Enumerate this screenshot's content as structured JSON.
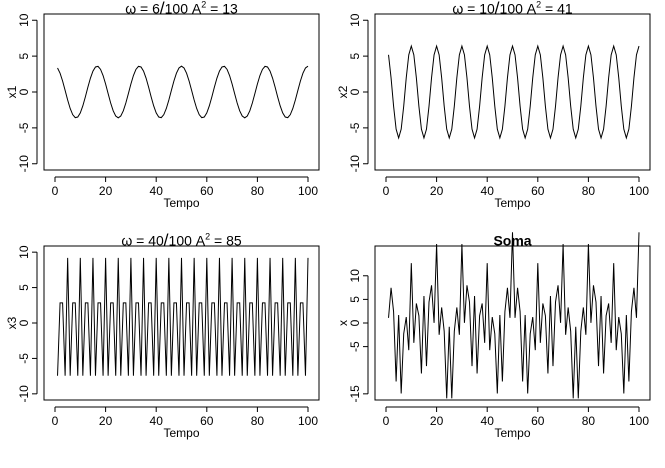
{
  "chart_data": [
    {
      "type": "line",
      "title": "ω = 6/100  A² = 13",
      "xlabel": "Tempo",
      "ylabel": "x1",
      "xlim": [
        0,
        100
      ],
      "ylim": [
        -10,
        10
      ],
      "xticks": [
        0,
        20,
        40,
        60,
        80,
        100
      ],
      "yticks": [
        -10,
        -5,
        0,
        5,
        10
      ],
      "series": [
        {
          "amplitude": 3.6,
          "frequency": 0.06,
          "phase_deg": 0,
          "x_start": 1,
          "x_end": 100
        }
      ]
    },
    {
      "type": "line",
      "title": "ω = 10/100  A² = 41",
      "xlabel": "Tempo",
      "ylabel": "x2",
      "xlim": [
        0,
        100
      ],
      "ylim": [
        -10,
        10
      ],
      "xticks": [
        0,
        20,
        40,
        60,
        80,
        100
      ],
      "yticks": [
        -10,
        -5,
        0,
        5,
        10
      ],
      "series": [
        {
          "amplitude": 6.4,
          "frequency": 0.1,
          "phase_deg": 0,
          "x_start": 1,
          "x_end": 100
        }
      ]
    },
    {
      "type": "line",
      "title": "ω = 40/100  A² = 85",
      "xlabel": "Tempo",
      "ylabel": "x3",
      "xlim": [
        0,
        100
      ],
      "ylim": [
        -10,
        10
      ],
      "xticks": [
        0,
        20,
        40,
        60,
        80,
        100
      ],
      "yticks": [
        -10,
        -5,
        0,
        5,
        10
      ],
      "series": [
        {
          "amplitude": 9.2,
          "frequency": 0.4,
          "phase_deg": 0,
          "x_start": 1,
          "x_end": 100
        }
      ]
    },
    {
      "type": "line",
      "title": "Soma",
      "xlabel": "Tempo",
      "ylabel": "x",
      "xlim": [
        0,
        100
      ],
      "ylim": [
        -15,
        15
      ],
      "xticks": [
        0,
        20,
        40,
        60,
        80,
        100
      ],
      "yticks": [
        -15,
        -5,
        0,
        5,
        10
      ],
      "series": [
        {
          "sum_of": [
            0,
            1,
            2
          ],
          "x_start": 1,
          "x_end": 100
        }
      ]
    }
  ]
}
